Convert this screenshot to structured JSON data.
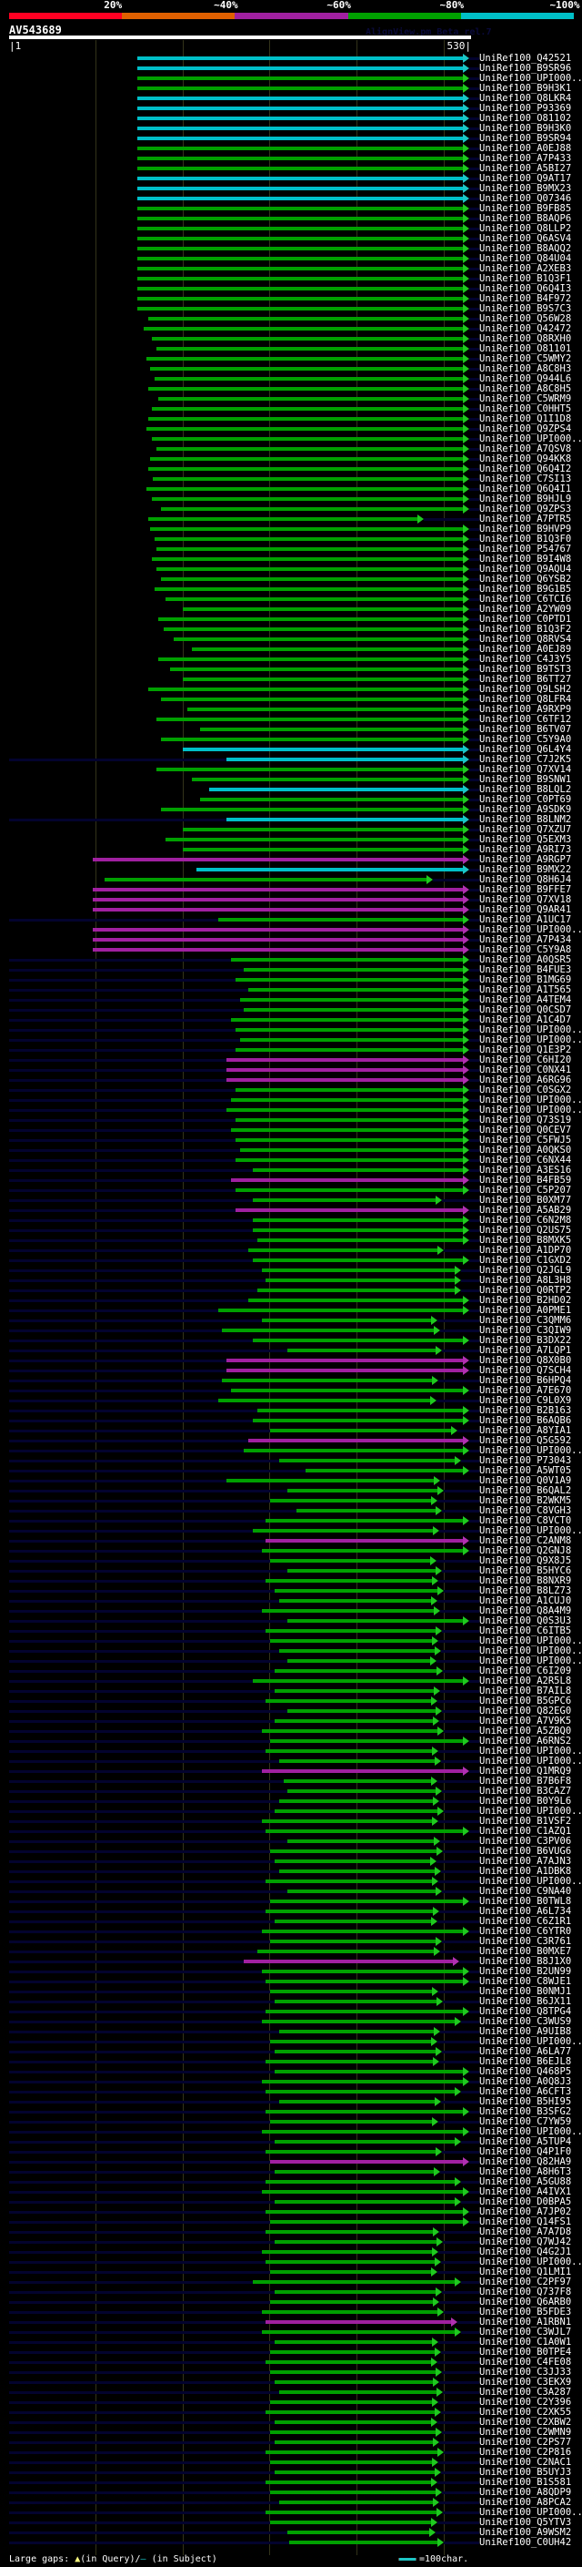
{
  "legend": {
    "segments": [
      {
        "label": "20%",
        "color": "#ff0022"
      },
      {
        "label": "~40%",
        "color": "#e06000"
      },
      {
        "label": "~60%",
        "color": "#a020a0"
      },
      {
        "label": "~80%",
        "color": "#00a000"
      },
      {
        "label": "~100%",
        "color": "#00c0c8"
      }
    ]
  },
  "query": {
    "title": "AV543689",
    "credit": "AlignView.pm Beta rel.7",
    "start_label": "|1",
    "end_label": "530|",
    "length": 530
  },
  "colors": {
    "c": "#00c0c8",
    "g": "#00a000",
    "p": "#a020a0",
    "n": "#00a000"
  },
  "label_prefix": "UniRef100_",
  "rows": [
    [
      "Q42521",
      "c",
      148,
      522
    ],
    [
      "B9SR96",
      "c",
      148,
      522
    ],
    [
      "UPI000..",
      "g",
      148,
      522
    ],
    [
      "B9H3K1",
      "g",
      148,
      522
    ],
    [
      "Q8LKR4",
      "c",
      148,
      522
    ],
    [
      "P93369",
      "c",
      148,
      522
    ],
    [
      "O81102",
      "c",
      148,
      522
    ],
    [
      "B9H3K0",
      "c",
      148,
      522
    ],
    [
      "B9SR94",
      "c",
      148,
      522
    ],
    [
      "A0EJ88",
      "g",
      148,
      522
    ],
    [
      "A7P433",
      "g",
      148,
      522
    ],
    [
      "A5BI27",
      "g",
      148,
      522
    ],
    [
      "Q9AT17",
      "c",
      148,
      522
    ],
    [
      "B9MX23",
      "c",
      148,
      522
    ],
    [
      "Q07346",
      "c",
      148,
      522
    ],
    [
      "B9FB85",
      "g",
      148,
      522
    ],
    [
      "B8AQP6",
      "g",
      148,
      522
    ],
    [
      "Q8LLP2",
      "g",
      148,
      522
    ],
    [
      "Q6ASV4",
      "g",
      148,
      522
    ],
    [
      "B8AQQ2",
      "g",
      148,
      522
    ],
    [
      "Q84U04",
      "g",
      148,
      522
    ],
    [
      "A2XEB3",
      "g",
      148,
      522
    ],
    [
      "B1Q3F1",
      "g",
      148,
      522
    ],
    [
      "Q6Q4I3",
      "g",
      148,
      522
    ],
    [
      "B4F972",
      "g",
      148,
      522
    ],
    [
      "B9S7C3",
      "g",
      148,
      522
    ],
    [
      "Q56W28",
      "g",
      160,
      522
    ],
    [
      "Q42472",
      "g",
      155,
      522
    ],
    [
      "Q8RXH0",
      "g",
      165,
      522
    ],
    [
      "O81101",
      "g",
      170,
      522
    ],
    [
      "C5WMY2",
      "g",
      158,
      522
    ],
    [
      "A8C8H3",
      "g",
      162,
      522
    ],
    [
      "Q944L6",
      "g",
      168,
      522
    ],
    [
      "A8C8H5",
      "g",
      160,
      522
    ],
    [
      "C5WRM9",
      "g",
      172,
      522
    ],
    [
      "C0HHT5",
      "g",
      165,
      522
    ],
    [
      "Q1I1D8",
      "g",
      160,
      522
    ],
    [
      "Q9ZPS4",
      "g",
      158,
      522
    ],
    [
      "UPI000..",
      "g",
      165,
      522
    ],
    [
      "A7QSV8",
      "g",
      170,
      522
    ],
    [
      "Q94KK8",
      "g",
      162,
      522
    ],
    [
      "Q6Q4I2",
      "g",
      160,
      522
    ],
    [
      "C7SI13",
      "g",
      166,
      522
    ],
    [
      "Q6Q4I1",
      "g",
      158,
      522
    ],
    [
      "B9HJL9",
      "g",
      165,
      522
    ],
    [
      "Q9ZPS3",
      "g",
      175,
      522
    ],
    [
      "A7PTR5",
      "n",
      160,
      470
    ],
    [
      "B9HVP9",
      "g",
      162,
      522
    ],
    [
      "B1Q3F0",
      "g",
      168,
      522
    ],
    [
      "P54767",
      "g",
      170,
      522
    ],
    [
      "B9I4W8",
      "g",
      165,
      522
    ],
    [
      "Q9AQU4",
      "g",
      170,
      522
    ],
    [
      "Q6YSB2",
      "g",
      175,
      522
    ],
    [
      "B9G1B5",
      "g",
      168,
      522
    ],
    [
      "C6TCI6",
      "g",
      180,
      522
    ],
    [
      "A2YW09",
      "g",
      200,
      522
    ],
    [
      "C0PTD1",
      "g",
      172,
      522
    ],
    [
      "B1Q3F2",
      "g",
      178,
      522
    ],
    [
      "Q8RVS4",
      "g",
      190,
      522
    ],
    [
      "A0EJ89",
      "g",
      210,
      522
    ],
    [
      "C4J3Y5",
      "g",
      172,
      522
    ],
    [
      "B9TST3",
      "g",
      185,
      522
    ],
    [
      "B6TT27",
      "g",
      200,
      522
    ],
    [
      "Q9LSH2",
      "g",
      160,
      522
    ],
    [
      "Q8LFR4",
      "g",
      175,
      522
    ],
    [
      "A9RXP9",
      "g",
      205,
      522
    ],
    [
      "C6TF12",
      "g",
      170,
      522
    ],
    [
      "B6TV07",
      "g",
      220,
      522
    ],
    [
      "C5Y9A0",
      "g",
      175,
      522
    ],
    [
      "Q6L4Y4",
      "c",
      200,
      522
    ],
    [
      "C7J2K5",
      "c",
      250,
      522
    ],
    [
      "Q7XV14",
      "g",
      170,
      522
    ],
    [
      "B9SNW1",
      "g",
      210,
      522
    ],
    [
      "B8LQL2",
      "c",
      230,
      522
    ],
    [
      "C0PT69",
      "g",
      220,
      522
    ],
    [
      "A9SDK9",
      "g",
      175,
      522
    ],
    [
      "B8LNM2",
      "c",
      250,
      522
    ],
    [
      "Q7XZU7",
      "g",
      200,
      522
    ],
    [
      "Q5EXM3",
      "g",
      180,
      522
    ],
    [
      "A9RI73",
      "g",
      200,
      522
    ],
    [
      "A9RGP7",
      "p",
      97,
      522
    ],
    [
      "B9MX22",
      "c",
      215,
      522
    ],
    [
      "Q8H6J4",
      "n",
      110,
      480
    ],
    [
      "B9FFE7",
      "p",
      97,
      522
    ],
    [
      "Q7XV18",
      "p",
      97,
      522
    ],
    [
      "Q9AR41",
      "p",
      97,
      522
    ],
    [
      "A1UC17",
      "g",
      240,
      522
    ],
    [
      "UPI000..",
      "p",
      97,
      522
    ],
    [
      "A7P434",
      "p",
      97,
      522
    ],
    [
      "C5Y9A8",
      "p",
      97,
      522
    ],
    [
      "A0QSR5",
      "g",
      255,
      522
    ],
    [
      "B4FUE3",
      "g",
      270,
      522
    ],
    [
      "B1MG69",
      "g",
      260,
      522
    ],
    [
      "A1T565",
      "g",
      275,
      522
    ],
    [
      "A4TEM4",
      "g",
      265,
      522
    ],
    [
      "Q0CSD7",
      "g",
      270,
      522
    ],
    [
      "A1C4D7",
      "g",
      255,
      522
    ],
    [
      "UPI000..",
      "g",
      260,
      522
    ],
    [
      "UPI000..",
      "g",
      265,
      522
    ],
    [
      "Q1E3P2",
      "g",
      260,
      522
    ],
    [
      "C6HI20",
      "p",
      250,
      522
    ],
    [
      "C0NX41",
      "p",
      250,
      522
    ],
    [
      "A6RG96",
      "p",
      250,
      522
    ],
    [
      "C0SGX2",
      "g",
      260,
      522
    ],
    [
      "UPI000..",
      "g",
      255,
      522
    ],
    [
      "UPI000..",
      "g",
      250,
      522
    ],
    [
      "Q73S19",
      "g",
      260,
      522
    ],
    [
      "Q0CEV7",
      "g",
      255,
      522
    ],
    [
      "C5FWJ5",
      "g",
      260,
      522
    ],
    [
      "A0QKS0",
      "g",
      265,
      522
    ],
    [
      "C6NX44",
      "g",
      260,
      522
    ],
    [
      "A3ES16",
      "g",
      280,
      522
    ],
    [
      "B4FB59",
      "p",
      255,
      522
    ],
    [
      "C5P207",
      "g",
      260,
      522
    ],
    [
      "B0XM77",
      "n",
      280,
      490
    ],
    [
      "A5AB29",
      "p",
      260,
      522
    ],
    [
      "C6N2M8",
      "g",
      280,
      522
    ],
    [
      "Q2US75",
      "g",
      280,
      522
    ],
    [
      "B8MXK5",
      "g",
      285,
      522
    ],
    [
      "A1DP70",
      "n",
      275,
      492
    ],
    [
      "C1GXD2",
      "g",
      280,
      522
    ],
    [
      "Q2JGL9",
      "g",
      290,
      512
    ],
    [
      "A8L3H8",
      "g",
      295,
      512
    ],
    [
      "Q0RTP2",
      "g",
      285,
      512
    ],
    [
      "B2HD02",
      "g",
      275,
      522
    ],
    [
      "A0PME1",
      "g",
      240,
      522
    ],
    [
      "C3QMM6",
      "n",
      290,
      485
    ],
    [
      "C3QIW9",
      "n",
      245,
      488
    ],
    [
      "B3DX22",
      "g",
      280,
      522
    ],
    [
      "A7LQP1",
      "n",
      320,
      490
    ],
    [
      "Q8X0B0",
      "p",
      250,
      522
    ],
    [
      "Q7SCH4",
      "p",
      250,
      522
    ],
    [
      "B6HPQ4",
      "n",
      245,
      486
    ],
    [
      "A7E670",
      "g",
      255,
      522
    ],
    [
      "C9L0X9",
      "n",
      240,
      484
    ],
    [
      "B2B163",
      "g",
      285,
      522
    ],
    [
      "B6AQB6",
      "g",
      280,
      522
    ],
    [
      "A8YIA1",
      "g",
      300,
      508
    ],
    [
      "Q5G592",
      "p",
      275,
      522
    ],
    [
      "UPI000..",
      "g",
      270,
      522
    ],
    [
      "P73043",
      "g",
      310,
      512
    ],
    [
      "A5WT05",
      "g",
      340,
      522
    ],
    [
      "Q0V1A9",
      "n",
      250,
      488
    ],
    [
      "B6QAL2",
      "n",
      320,
      492
    ],
    [
      "B2WKM5",
      "n",
      300,
      485
    ],
    [
      "C8VGH3",
      "n",
      330,
      490
    ],
    [
      "C8VCT0",
      "g",
      295,
      522
    ],
    [
      "UPI000..",
      "n",
      280,
      487
    ],
    [
      "C2ANM8",
      "p",
      295,
      522
    ],
    [
      "Q2GNJ8",
      "g",
      290,
      522
    ],
    [
      "Q9X8J5",
      "n",
      300,
      484
    ],
    [
      "B5HYC6",
      "n",
      320,
      490
    ],
    [
      "B8NXR9",
      "n",
      295,
      486
    ],
    [
      "B8LZ73",
      "n",
      305,
      492
    ],
    [
      "A1CUJ0",
      "n",
      310,
      485
    ],
    [
      "Q8A4M9",
      "n",
      290,
      488
    ],
    [
      "Q0S3U3",
      "g",
      320,
      522
    ],
    [
      "C6ITB5",
      "n",
      295,
      490
    ],
    [
      "UPI000..",
      "n",
      300,
      486
    ],
    [
      "UPI000..",
      "n",
      310,
      489
    ],
    [
      "UPI000..",
      "n",
      320,
      484
    ],
    [
      "C6I209",
      "n",
      305,
      491
    ],
    [
      "A2R5L8",
      "g",
      280,
      522
    ],
    [
      "B7AIL8",
      "n",
      305,
      488
    ],
    [
      "B5GPC6",
      "n",
      295,
      485
    ],
    [
      "Q82EG0",
      "n",
      320,
      490
    ],
    [
      "A7V9K5",
      "n",
      305,
      487
    ],
    [
      "A5ZBQ0",
      "n",
      290,
      492
    ],
    [
      "A6RNS2",
      "g",
      300,
      522
    ],
    [
      "UPI000..",
      "n",
      295,
      486
    ],
    [
      "UPI000..",
      "n",
      310,
      489
    ],
    [
      "Q1MRQ9",
      "p",
      290,
      522
    ],
    [
      "B7B6F8",
      "n",
      315,
      485
    ],
    [
      "B3CAZ7",
      "n",
      320,
      490
    ],
    [
      "B0Y9L6",
      "n",
      310,
      487
    ],
    [
      "UPI000..",
      "n",
      305,
      492
    ],
    [
      "B1VSF2",
      "n",
      290,
      486
    ],
    [
      "C1AZQ1",
      "g",
      295,
      522
    ],
    [
      "C3PV06",
      "n",
      320,
      488
    ],
    [
      "B6VUG6",
      "n",
      300,
      491
    ],
    [
      "A7AJN3",
      "n",
      305,
      484
    ],
    [
      "A1DBK8",
      "n",
      310,
      489
    ],
    [
      "UPI000..",
      "n",
      295,
      486
    ],
    [
      "C9NA40",
      "n",
      320,
      490
    ],
    [
      "B0TWL8",
      "g",
      300,
      522
    ],
    [
      "A6L734",
      "n",
      295,
      487
    ],
    [
      "C6Z1R1",
      "n",
      305,
      485
    ],
    [
      "C6YTR0",
      "g",
      290,
      522
    ],
    [
      "C3R761",
      "n",
      300,
      490
    ],
    [
      "B0MXE7",
      "n",
      285,
      488
    ],
    [
      "B8J1X0",
      "p",
      270,
      510
    ],
    [
      "B2UN99",
      "g",
      290,
      522
    ],
    [
      "C8WJE1",
      "g",
      295,
      522
    ],
    [
      "B0NMJ1",
      "n",
      300,
      486
    ],
    [
      "B6JX11",
      "n",
      305,
      491
    ],
    [
      "Q8TPG4",
      "g",
      295,
      522
    ],
    [
      "C3WUS9",
      "g",
      290,
      512
    ],
    [
      "A9UIB8",
      "n",
      310,
      488
    ],
    [
      "UPI000..",
      "n",
      300,
      485
    ],
    [
      "A6LA77",
      "n",
      305,
      490
    ],
    [
      "B6EJL8",
      "n",
      295,
      487
    ],
    [
      "Q468P5",
      "g",
      305,
      522
    ],
    [
      "A0Q8J3",
      "g",
      290,
      522
    ],
    [
      "A6CFT3",
      "g",
      295,
      512
    ],
    [
      "B5HI95",
      "n",
      310,
      489
    ],
    [
      "B3SFG2",
      "g",
      295,
      522
    ],
    [
      "C7YW59",
      "n",
      300,
      486
    ],
    [
      "UPI000..",
      "g",
      290,
      522
    ],
    [
      "A5TUP4",
      "g",
      305,
      512
    ],
    [
      "Q4P1F0",
      "n",
      295,
      490
    ],
    [
      "Q82HA9",
      "p",
      300,
      522
    ],
    [
      "A8H6T3",
      "n",
      305,
      488
    ],
    [
      "A5GU88",
      "g",
      295,
      512
    ],
    [
      "A4IVX1",
      "g",
      290,
      522
    ],
    [
      "D0BPA5",
      "g",
      305,
      512
    ],
    [
      "A7JP02",
      "g",
      295,
      522
    ],
    [
      "Q14FS1",
      "g",
      300,
      522
    ],
    [
      "A7A7D8",
      "n",
      295,
      487
    ],
    [
      "Q7WJ42",
      "n",
      305,
      491
    ],
    [
      "Q4G2J1",
      "n",
      290,
      486
    ],
    [
      "UPI000..",
      "n",
      295,
      489
    ],
    [
      "Q1LMI1",
      "n",
      300,
      485
    ],
    [
      "C2PF97",
      "g",
      280,
      512
    ],
    [
      "Q737F8",
      "n",
      305,
      490
    ],
    [
      "Q6ARB0",
      "n",
      300,
      487
    ],
    [
      "B5FDE3",
      "n",
      290,
      492
    ],
    [
      "A1RBN1",
      "p",
      295,
      508
    ],
    [
      "C3WJL7",
      "g",
      290,
      512
    ],
    [
      "C1A0W1",
      "n",
      305,
      486
    ],
    [
      "B0TPE4",
      "n",
      300,
      489
    ],
    [
      "C4FE08",
      "n",
      295,
      485
    ],
    [
      "C3JJ33",
      "n",
      300,
      490
    ],
    [
      "C3EKX9",
      "n",
      305,
      487
    ],
    [
      "C3A287",
      "n",
      310,
      491
    ],
    [
      "C2Y396",
      "n",
      300,
      486
    ],
    [
      "C2XK55",
      "n",
      295,
      489
    ],
    [
      "C2XBW2",
      "n",
      305,
      485
    ],
    [
      "C2WMN9",
      "n",
      300,
      490
    ],
    [
      "C2PS77",
      "n",
      305,
      487
    ],
    [
      "C2P816",
      "n",
      295,
      492
    ],
    [
      "C2NAC1",
      "n",
      300,
      486
    ],
    [
      "B5UYJ3",
      "n",
      305,
      489
    ],
    [
      "B1S581",
      "n",
      295,
      485
    ],
    [
      "A8QDP9",
      "n",
      300,
      490
    ],
    [
      "A8PCA2",
      "n",
      310,
      487
    ],
    [
      "UPI000..",
      "n",
      295,
      491
    ],
    [
      "Q5YTV3",
      "g",
      300,
      485
    ],
    [
      "A9WSM2",
      "n",
      320,
      483
    ],
    [
      "C0UH42",
      "n",
      322,
      493
    ]
  ],
  "footer": {
    "gaps_label": "Large gaps: ",
    "query_glyph": "▲",
    "query_text": "(in Query)/",
    "subject_glyph": "—",
    "subject_text": " (in Subject)",
    "scale_text": "=100char."
  }
}
